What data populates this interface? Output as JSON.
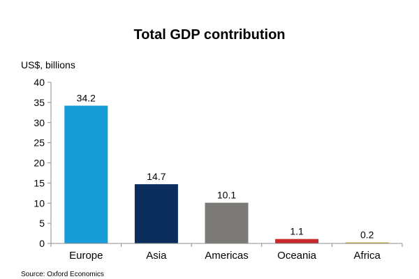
{
  "chart_data": {
    "type": "bar",
    "title": "Total GDP contribution",
    "ylabel": "US$, billions",
    "xlabel": "",
    "categories": [
      "Europe",
      "Asia",
      "Americas",
      "Oceania",
      "Africa"
    ],
    "values": [
      34.2,
      14.7,
      10.1,
      1.1,
      0.2
    ],
    "data_labels": [
      "34.2",
      "14.7",
      "10.1",
      "1.1",
      "0.2"
    ],
    "colors": [
      "#179cd8",
      "#0b2d5e",
      "#7c7a76",
      "#c52a2f",
      "#c9a341"
    ],
    "ylim": [
      0,
      40
    ],
    "yticks": [
      0,
      5,
      10,
      15,
      20,
      25,
      30,
      35,
      40
    ],
    "grid": false,
    "legend": "none"
  },
  "source": "Source: Oxford Economics",
  "axis_color": "#8c8c8c"
}
